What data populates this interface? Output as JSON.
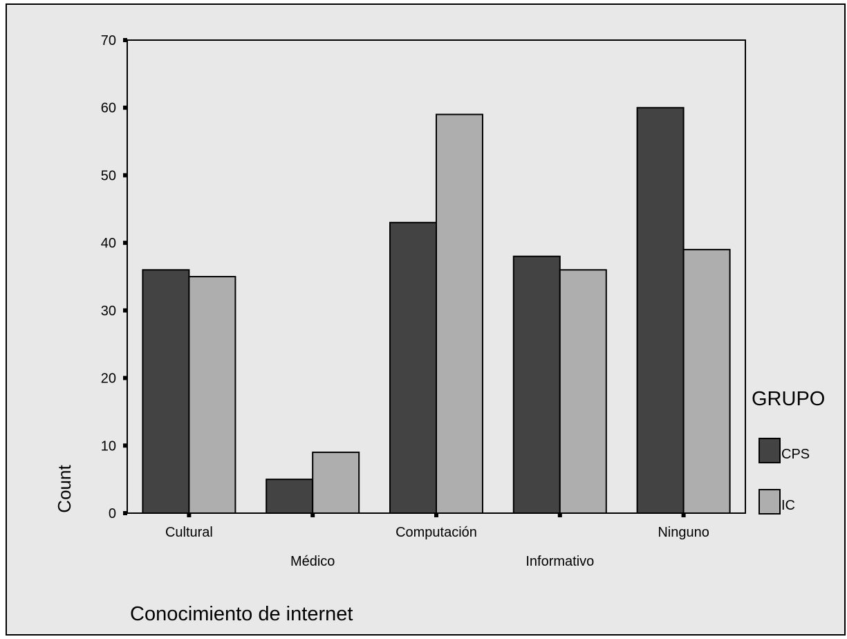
{
  "chart_data": {
    "type": "bar",
    "title": "",
    "xlabel": "Conocimiento de internet",
    "ylabel": "Count",
    "categories": [
      "Cultural",
      "Médico",
      "Computación",
      "Informativo",
      "Ninguno"
    ],
    "series": [
      {
        "name": "CPS",
        "values": [
          36,
          5,
          43,
          38,
          60
        ],
        "color": "#434343"
      },
      {
        "name": "IC",
        "values": [
          35,
          9,
          59,
          36,
          39
        ],
        "color": "#aeaeae"
      }
    ],
    "ylim": [
      0,
      70
    ],
    "yticks": [
      "0",
      "10",
      "20",
      "30",
      "40",
      "50",
      "60",
      "70"
    ],
    "grid": false,
    "legend": {
      "title": "GRUPO",
      "position": "right"
    },
    "background": "#e8e8e8"
  }
}
